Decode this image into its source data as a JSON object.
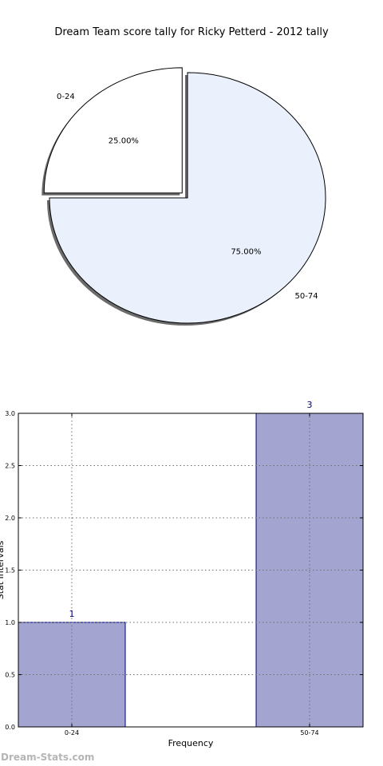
{
  "chart_data": [
    {
      "type": "pie",
      "title": "Dream Team score tally for Ricky Petterd - 2012 tally",
      "labels": [
        "0-24",
        "50-74"
      ],
      "values": [
        1,
        3
      ],
      "percent_labels": [
        "25.00%",
        "75.00%"
      ],
      "colors": [
        "#ffffff",
        "#eaf1fd"
      ],
      "exploded": [
        "0-24"
      ],
      "shadow": true
    },
    {
      "type": "bar",
      "categories": [
        "0-24",
        "50-74"
      ],
      "values": [
        1,
        3
      ],
      "data_labels": [
        "1",
        "3"
      ],
      "xlabel": "Frequency",
      "ylabel": "Stat Intervals",
      "ylim": [
        0,
        3
      ],
      "yticks": [
        "0.0",
        "0.5",
        "1.0",
        "1.5",
        "2.0",
        "2.5",
        "3.0"
      ],
      "grid": true,
      "bar_color": "#a3a4d0",
      "bar_edge_color": "#00007a"
    }
  ],
  "watermark": "Dream-Stats.com"
}
